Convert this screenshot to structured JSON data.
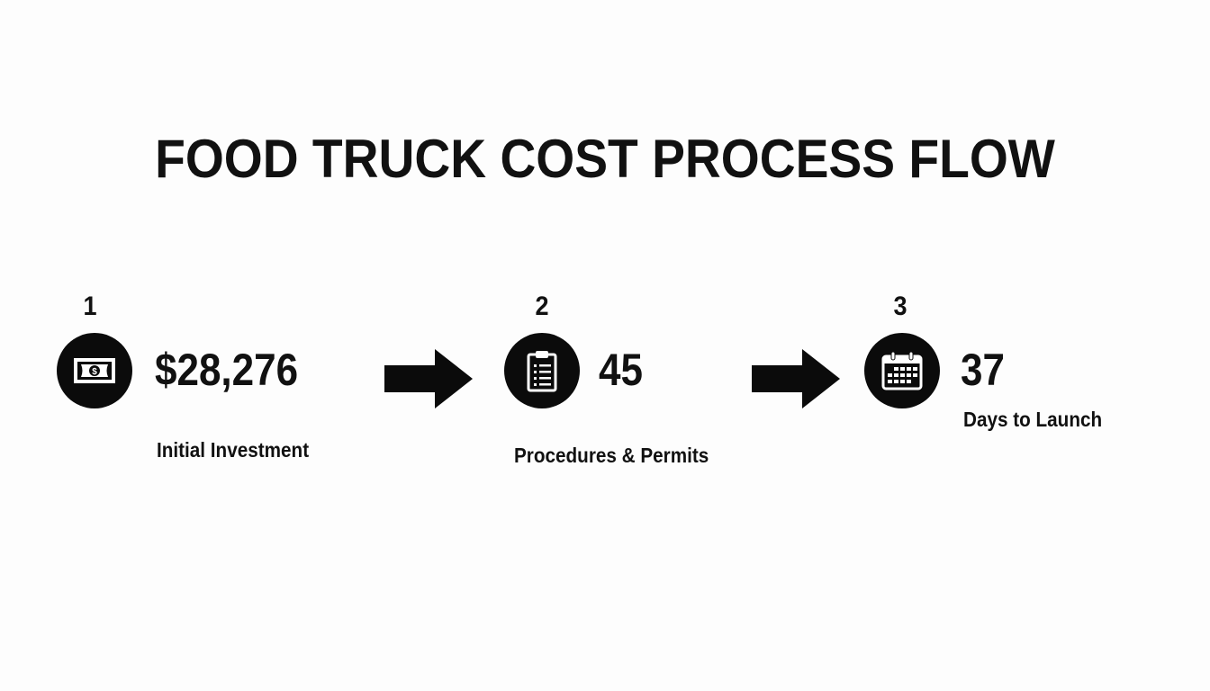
{
  "title": "FOOD TRUCK COST PROCESS FLOW",
  "steps": [
    {
      "number": "1",
      "icon": "money-bill-icon",
      "value": "$28,276",
      "label": "Initial Investment"
    },
    {
      "number": "2",
      "icon": "clipboard-icon",
      "value": "45",
      "label": "Procedures & Permits"
    },
    {
      "number": "3",
      "icon": "calendar-icon",
      "value": "37",
      "label": "Days to Launch"
    }
  ],
  "colors": {
    "icon_background": "#0b0b0b",
    "text": "#111111",
    "background": "#fdfdfd"
  }
}
